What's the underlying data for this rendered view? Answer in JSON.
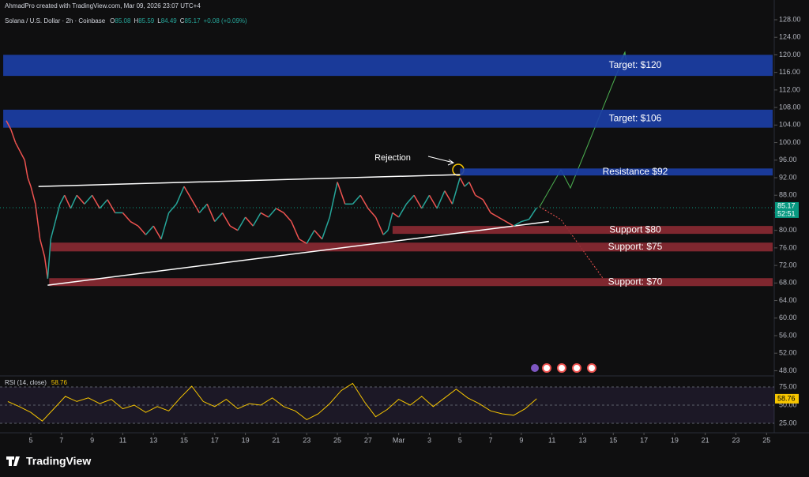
{
  "header": {
    "credit": "AhmadPro created with TradingView.com, Mar 09, 2026 23:07 UTC+4",
    "symbol": "Solana / U.S. Dollar · 2h · Coinbase",
    "ohlc": [
      {
        "key": "O",
        "value": "85.08"
      },
      {
        "key": "H",
        "value": "85.59"
      },
      {
        "key": "L",
        "value": "84.49"
      },
      {
        "key": "C",
        "value": "85.17"
      }
    ],
    "change": "+0.08 (+0.09%)",
    "logo": "TradingView"
  },
  "chart_data": [
    {
      "type": "line",
      "name": "Solana / U.S. Dollar",
      "x": [
        -1.6,
        -1.3,
        -1,
        -0.7,
        -0.4,
        -0.2,
        0,
        0.3,
        0.6,
        0.9,
        1.1,
        1.3,
        1.6,
        1.9,
        2.2,
        2.6,
        3,
        3.5,
        4,
        4.5,
        5,
        5.5,
        6,
        6.5,
        7,
        7.5,
        8,
        8.5,
        9,
        9.5,
        10,
        10.5,
        11,
        11.5,
        12,
        12.5,
        13,
        13.5,
        14,
        14.5,
        15,
        15.5,
        16,
        16.5,
        17,
        17.5,
        18,
        18.5,
        19,
        19.5,
        20,
        20.5,
        21,
        21.5,
        22,
        22.5,
        23,
        23.3,
        23.6,
        24,
        24.5,
        25,
        25.5,
        26,
        26.5,
        27,
        27.5,
        28,
        28.3,
        28.6,
        29,
        29.5,
        30,
        30.5,
        31,
        31.5,
        32,
        32.5,
        33
      ],
      "values": [
        105,
        103,
        100,
        98,
        96,
        92,
        90,
        86,
        78,
        74,
        69,
        78,
        82,
        86,
        88,
        85,
        88,
        86,
        88,
        85,
        87,
        84,
        84,
        82,
        81,
        79,
        81,
        78,
        84,
        86,
        90,
        87,
        84,
        86,
        82,
        84,
        81,
        80,
        83,
        81,
        84,
        83,
        85,
        84,
        82,
        78,
        77,
        80,
        78,
        83,
        91,
        86,
        86,
        88,
        85,
        83,
        79,
        80,
        84,
        83,
        86,
        88,
        85,
        88,
        85,
        89,
        86,
        92,
        90,
        91,
        88,
        87,
        84,
        83,
        82,
        81,
        82,
        82.5,
        85.17
      ],
      "up_color": "#26a69a",
      "down_color": "#ef5350",
      "xlim": [
        -2.01,
        48.5
      ],
      "ylim": [
        47,
        132.5
      ],
      "xticks": [
        {
          "value": 0,
          "label": "5"
        },
        {
          "value": 2,
          "label": "7"
        },
        {
          "value": 4,
          "label": "9"
        },
        {
          "value": 6,
          "label": "11"
        },
        {
          "value": 8,
          "label": "13"
        },
        {
          "value": 10,
          "label": "15"
        },
        {
          "value": 12,
          "label": "17"
        },
        {
          "value": 14,
          "label": "19"
        },
        {
          "value": 16,
          "label": "21"
        },
        {
          "value": 18,
          "label": "23"
        },
        {
          "value": 20,
          "label": "25"
        },
        {
          "value": 22,
          "label": "27"
        },
        {
          "value": 24,
          "label": "Mar"
        },
        {
          "value": 26,
          "label": "3"
        },
        {
          "value": 28,
          "label": "5"
        },
        {
          "value": 30,
          "label": "7"
        },
        {
          "value": 32,
          "label": "9"
        },
        {
          "value": 34,
          "label": "11"
        },
        {
          "value": 36,
          "label": "13"
        },
        {
          "value": 38,
          "label": "15"
        },
        {
          "value": 40,
          "label": "17"
        },
        {
          "value": 42,
          "label": "19"
        },
        {
          "value": 44,
          "label": "21"
        },
        {
          "value": 46,
          "label": "23"
        },
        {
          "value": 48,
          "label": "25"
        }
      ],
      "yticks": [
        {
          "value": 128,
          "label": "128.00"
        },
        {
          "value": 124,
          "label": "124.00"
        },
        {
          "value": 120,
          "label": "120.00"
        },
        {
          "value": 116,
          "label": "116.00"
        },
        {
          "value": 112,
          "label": "112.00"
        },
        {
          "value": 108,
          "label": "108.00"
        },
        {
          "value": 104,
          "label": "104.00"
        },
        {
          "value": 100,
          "label": "100.00"
        },
        {
          "value": 96,
          "label": "96.00"
        },
        {
          "value": 92,
          "label": "92.00"
        },
        {
          "value": 88,
          "label": "88.00"
        },
        {
          "value": 84,
          "label": "84.00"
        },
        {
          "value": 80,
          "label": "80.00"
        },
        {
          "value": 76,
          "label": "76.00"
        },
        {
          "value": 72,
          "label": "72.00"
        },
        {
          "value": 68,
          "label": "68.00"
        },
        {
          "value": 64,
          "label": "64.00"
        },
        {
          "value": 60,
          "label": "60.00"
        },
        {
          "value": 56,
          "label": "56.00"
        },
        {
          "value": 52,
          "label": "52.00"
        },
        {
          "value": 48,
          "label": "48.00"
        }
      ],
      "last_price": {
        "value": 85.17,
        "label": "85.17",
        "countdown": "52:51",
        "color": "#089981"
      },
      "zones": [
        {
          "label": "Target: $120",
          "from": 115.2,
          "to": 120,
          "x0": -1.8,
          "color": "#1c3fa8"
        },
        {
          "label": "Target: $106",
          "from": 103.4,
          "to": 107.5,
          "x0": -1.8,
          "color": "#1c3fa8"
        },
        {
          "label": "Resistance $92",
          "from": 92.5,
          "to": 94.1,
          "x0": 28,
          "color": "#1c3fa8"
        },
        {
          "label": "Support $80",
          "from": 79.2,
          "to": 81,
          "x0": 23.6,
          "color": "#8c2a33"
        },
        {
          "label": "Support: $75",
          "from": 75.2,
          "to": 77.2,
          "x0": 1.3,
          "color": "#8c2a33"
        },
        {
          "label": "Support: $70",
          "from": 67.3,
          "to": 69.1,
          "x0": 1.2,
          "color": "#8c2a33"
        }
      ],
      "trendlines": [
        {
          "x": [
            0.5,
            28
          ],
          "y": [
            90,
            92.7
          ]
        },
        {
          "x": [
            1.1,
            33.8
          ],
          "y": [
            67.5,
            82
          ]
        }
      ],
      "annotation": "Rejection"
    },
    {
      "type": "line",
      "name": "RSI (14, close)",
      "last_label": "58.76",
      "color": "#f7c600",
      "x": [
        -1.5,
        -0.75,
        0,
        0.75,
        1.5,
        2.25,
        3,
        3.75,
        4.5,
        5.25,
        6,
        6.75,
        7.5,
        8.25,
        9,
        9.75,
        10.5,
        11.25,
        12,
        12.75,
        13.5,
        14.25,
        15,
        15.75,
        16.5,
        17.25,
        18,
        18.75,
        19.5,
        20.25,
        21,
        21.75,
        22.5,
        23.25,
        24,
        24.75,
        25.5,
        26.25,
        27,
        27.75,
        28.5,
        29.25,
        30,
        30.75,
        31.5,
        32.25,
        33
      ],
      "values": [
        55,
        48,
        40,
        28,
        45,
        62,
        55,
        60,
        52,
        58,
        45,
        50,
        40,
        48,
        42,
        60,
        76,
        55,
        48,
        58,
        45,
        52,
        50,
        60,
        48,
        42,
        30,
        38,
        52,
        70,
        80,
        55,
        34,
        44,
        58,
        50,
        62,
        48,
        60,
        72,
        60,
        52,
        42,
        38,
        36,
        45,
        58.76
      ],
      "ylim": [
        13,
        88
      ],
      "yticks": [
        {
          "value": 75,
          "label": "75.00"
        },
        {
          "value": 50,
          "label": "50.00"
        },
        {
          "value": 25,
          "label": "25.00"
        }
      ]
    }
  ]
}
